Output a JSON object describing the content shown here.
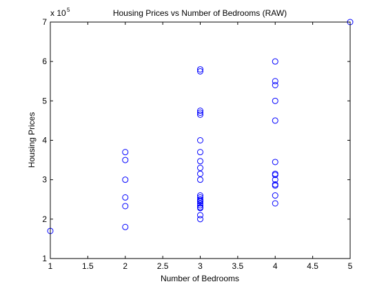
{
  "chart_data": {
    "type": "scatter",
    "title": "Housing Prices vs Number of Bedrooms (RAW)",
    "xlabel": "Number of Bedrooms",
    "ylabel": "Housing Prices",
    "xlim": [
      1,
      5
    ],
    "ylim": [
      1,
      7
    ],
    "y_multiplier": {
      "base": "x 10",
      "exponent": "5"
    },
    "x_ticks": [
      1,
      1.5,
      2,
      2.5,
      3,
      3.5,
      4,
      4.5,
      5
    ],
    "y_ticks": [
      1,
      2,
      3,
      4,
      5,
      6,
      7
    ],
    "grid": false,
    "marker": "circle",
    "marker_color": "#0000ff",
    "series": [
      {
        "x": [
          1,
          2,
          2,
          2,
          2,
          2,
          2,
          3,
          3,
          3,
          3,
          3,
          3,
          3,
          3,
          3,
          3,
          3,
          3,
          3,
          3,
          3,
          3,
          3,
          3,
          3,
          3,
          3,
          3,
          4,
          4,
          4,
          4,
          4,
          4,
          4,
          4,
          4,
          4,
          4,
          4,
          4,
          5
        ],
        "y": [
          1.7,
          3.7,
          3.5,
          3.0,
          2.55,
          2.33,
          1.8,
          5.8,
          5.75,
          4.75,
          4.7,
          4.65,
          4.0,
          3.7,
          3.47,
          3.3,
          3.15,
          3.0,
          2.6,
          2.55,
          2.47,
          2.4,
          2.3,
          2.1,
          2.0,
          2.5,
          2.45,
          2.35,
          2.28,
          6.0,
          5.5,
          5.4,
          5.0,
          4.5,
          3.45,
          3.15,
          3.12,
          3.0,
          2.88,
          2.85,
          2.6,
          2.4,
          7.0
        ]
      }
    ]
  }
}
